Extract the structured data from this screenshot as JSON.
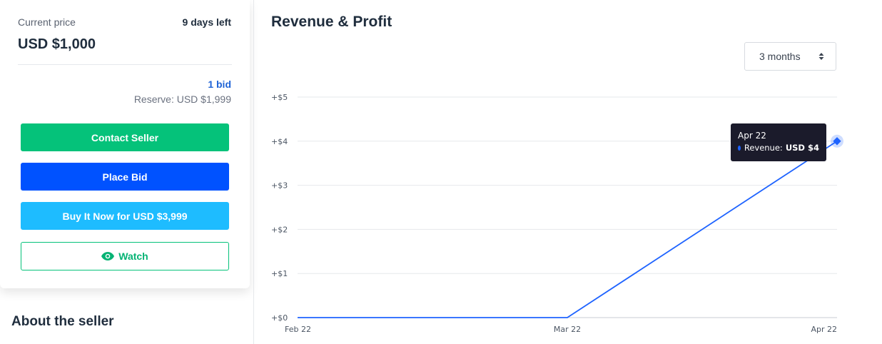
{
  "listing": {
    "current_price_label": "Current price",
    "days_left": "9 days left",
    "current_price": "USD $1,000",
    "bid_count": "1 bid",
    "reserve": "Reserve: USD $1,999"
  },
  "actions": {
    "contact_label": "Contact Seller",
    "bid_label": "Place Bid",
    "buy_label": "Buy It Now for USD $3,999",
    "watch_label": "Watch"
  },
  "about": {
    "title": "About the seller"
  },
  "colors": {
    "contact": "#05c27a",
    "bid": "#0052ff",
    "buy": "#1ebcff",
    "watch": "#05b374",
    "line": "#1e63ff"
  },
  "icons": {
    "watch": "eye-icon",
    "select": "sort-caret-icon"
  },
  "chart": {
    "title": "Revenue & Profit",
    "range_selected": "3 months",
    "tooltip": {
      "date": "Apr 22",
      "series_label": "Revenue:",
      "value": "USD $4"
    }
  },
  "chart_data": {
    "type": "line",
    "title": "Revenue & Profit",
    "x": [
      "Feb 22",
      "Mar 22",
      "Apr 22"
    ],
    "series": [
      {
        "name": "Revenue",
        "values": [
          0,
          0,
          4
        ]
      }
    ],
    "y_ticks": [
      "+$0",
      "+$1",
      "+$2",
      "+$3",
      "+$4",
      "+$5"
    ],
    "ylim": [
      0,
      5
    ],
    "grid": true
  }
}
